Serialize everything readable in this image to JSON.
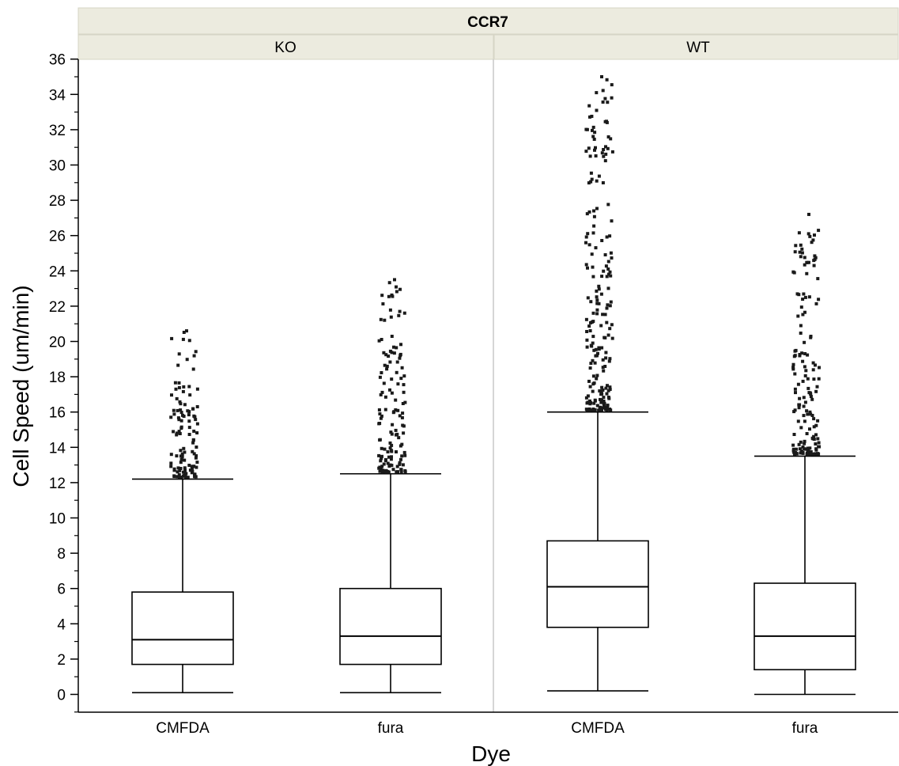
{
  "chart_data": {
    "type": "box",
    "title": "CCR7",
    "xlabel": "Dye",
    "ylabel": "Cell Speed (um/min)",
    "ylim": [
      -1,
      36
    ],
    "yticks": [
      0,
      2,
      4,
      6,
      8,
      10,
      12,
      14,
      16,
      18,
      20,
      22,
      24,
      26,
      28,
      30,
      32,
      34,
      36
    ],
    "panels": [
      {
        "label": "KO",
        "groups": [
          {
            "category": "CMFDA",
            "whisker_low": 0.1,
            "q1": 1.7,
            "median": 3.1,
            "q3": 5.8,
            "whisker_high": 12.2,
            "outlier_range": [
              12.2,
              20.6
            ]
          },
          {
            "category": "fura",
            "whisker_low": 0.1,
            "q1": 1.7,
            "median": 3.3,
            "q3": 6.0,
            "whisker_high": 12.5,
            "outlier_range": [
              12.5,
              23.5
            ]
          }
        ]
      },
      {
        "label": "WT",
        "groups": [
          {
            "category": "CMFDA",
            "whisker_low": 0.2,
            "q1": 3.8,
            "median": 6.1,
            "q3": 8.7,
            "whisker_high": 16.0,
            "outlier_range": [
              16.0,
              35.0
            ]
          },
          {
            "category": "fura",
            "whisker_low": 0.0,
            "q1": 1.4,
            "median": 3.3,
            "q3": 6.3,
            "whisker_high": 13.5,
            "outlier_range": [
              13.5,
              27.2
            ]
          }
        ]
      }
    ],
    "grid": false
  }
}
